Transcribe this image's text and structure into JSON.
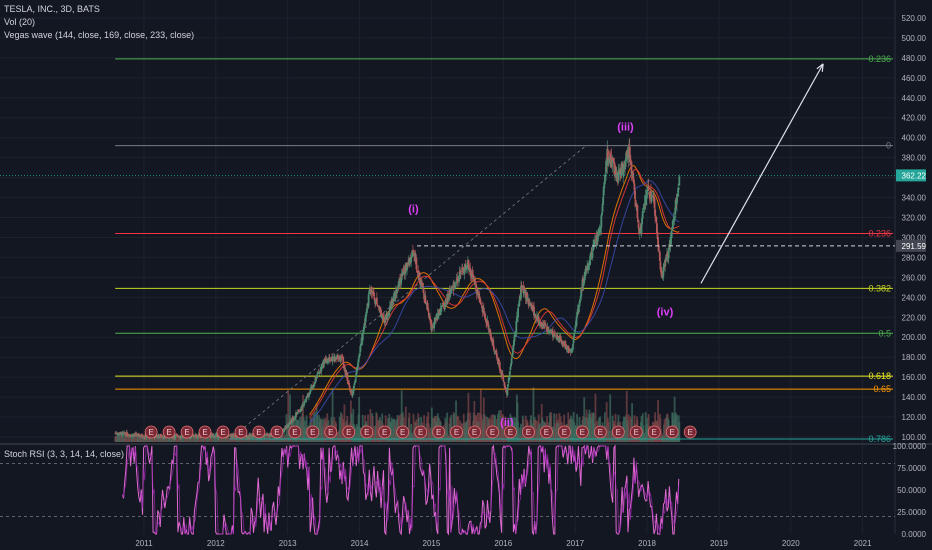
{
  "legend": {
    "symbol": "TESLA, INC., 3D, BATS",
    "volume": "Vol (20)",
    "vegas": "Vegas wave (144, close, 169, close, 233, close)",
    "stoch": "Stoch RSI (3, 3, 14, 14, close)"
  },
  "colors": {
    "background": "#131722",
    "grid": "#1e222d",
    "axis_text": "#b2b5be",
    "candle_up": "#4c8c72",
    "candle_down": "#b45a5a",
    "fib_0": "#787b86",
    "fib_0236": "#f23645",
    "fib_0382": "#c8d820",
    "fib_05": "#4caf50",
    "fib_0618": "#e8e820",
    "fib_065": "#ff9800",
    "fib_0786": "#26a69a",
    "fib_top_0236": "#4caf50",
    "wave_label": "#e040fb",
    "stoch_line": "#e06ad2",
    "earnings_badge": "#7a2a36"
  },
  "chart_data": [
    {
      "type": "candlestick",
      "title": "TESLA, INC., 3D, BATS",
      "y_axis_ticks": [
        100,
        120,
        140,
        160,
        180,
        200,
        220,
        240,
        260,
        280,
        300,
        320,
        340,
        360,
        380,
        400,
        420,
        440,
        460,
        480,
        500,
        520
      ],
      "y_range": [
        95,
        530
      ],
      "x_axis_ticks": [
        "2011",
        "2012",
        "2013",
        "2014",
        "2015",
        "2016",
        "2017",
        "2018",
        "2019",
        "2020",
        "2021"
      ],
      "x_range": [
        2010.5,
        2021.45
      ],
      "price_path": [
        [
          2010.6,
          104
        ],
        [
          2011.0,
          101
        ],
        [
          2011.5,
          101
        ],
        [
          2012.0,
          101
        ],
        [
          2012.5,
          101
        ],
        [
          2012.9,
          103
        ],
        [
          2013.2,
          130
        ],
        [
          2013.5,
          175
        ],
        [
          2013.75,
          180
        ],
        [
          2013.9,
          140
        ],
        [
          2014.15,
          250
        ],
        [
          2014.35,
          215
        ],
        [
          2014.55,
          255
        ],
        [
          2014.75,
          285
        ],
        [
          2015.0,
          210
        ],
        [
          2015.3,
          250
        ],
        [
          2015.5,
          275
        ],
        [
          2015.75,
          220
        ],
        [
          2016.05,
          145
        ],
        [
          2016.25,
          250
        ],
        [
          2016.5,
          215
        ],
        [
          2016.75,
          200
        ],
        [
          2016.95,
          185
        ],
        [
          2017.1,
          255
        ],
        [
          2017.35,
          310
        ],
        [
          2017.45,
          385
        ],
        [
          2017.6,
          360
        ],
        [
          2017.75,
          385
        ],
        [
          2017.9,
          305
        ],
        [
          2018.0,
          350
        ],
        [
          2018.1,
          335
        ],
        [
          2018.2,
          260
        ],
        [
          2018.3,
          285
        ],
        [
          2018.45,
          360
        ]
      ],
      "last_price": "362.22",
      "marked_price": "291.59",
      "fib_levels": [
        {
          "label": "0",
          "value": 392,
          "x_start": 2010.6
        },
        {
          "label": "0.236",
          "value": 304,
          "x_start": 2010.6
        },
        {
          "label": "0.382",
          "value": 249,
          "x_start": 2010.6
        },
        {
          "label": "0.5",
          "value": 204,
          "x_start": 2010.6
        },
        {
          "label": "0.618",
          "value": 161,
          "x_start": 2010.6
        },
        {
          "label": "0.65",
          "value": 148,
          "x_start": 2010.6
        },
        {
          "label": "0.786",
          "value": 98,
          "x_start": 2012.2
        },
        {
          "label": "0.236",
          "value": 479,
          "x_start": 2010.6
        }
      ],
      "wave_labels": [
        {
          "text": "(i)",
          "x": 2014.75,
          "y": 325
        },
        {
          "text": "(ii)",
          "x": 2016.05,
          "y": 111
        },
        {
          "text": "(iii)",
          "x": 2017.7,
          "y": 407
        },
        {
          "text": "(iv)",
          "x": 2018.25,
          "y": 222
        }
      ],
      "projection_arrow": {
        "from": [
          2018.75,
          254
        ],
        "to": [
          2020.45,
          474
        ]
      },
      "earnings_marker": "E",
      "earnings_dates": [
        2011.1,
        2011.35,
        2011.6,
        2011.85,
        2012.1,
        2012.35,
        2012.6,
        2012.85,
        2013.1,
        2013.35,
        2013.6,
        2013.85,
        2014.1,
        2014.35,
        2014.6,
        2014.85,
        2015.1,
        2015.35,
        2015.6,
        2015.85,
        2016.1,
        2016.35,
        2016.6,
        2016.85,
        2017.1,
        2017.35,
        2017.6,
        2017.85,
        2018.1,
        2018.35,
        2018.6
      ]
    },
    {
      "type": "line",
      "title": "Stoch RSI (3, 3, 14, 14, close)",
      "y_axis_ticks": [
        "100.0000",
        "75.0000",
        "50.0000",
        "25.0000",
        "0.0000"
      ],
      "y_range": [
        0,
        100
      ],
      "overbought": 80,
      "oversold": 20
    }
  ]
}
